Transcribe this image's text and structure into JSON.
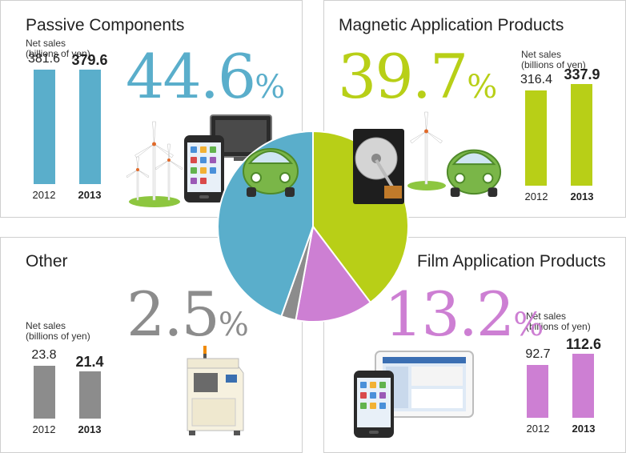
{
  "colors": {
    "passive": "#5aaecb",
    "magnetic": "#b8cf17",
    "film": "#cd7fd3",
    "other": "#8c8c8c"
  },
  "net_sales_label": [
    "Net sales",
    "(billions of yen)"
  ],
  "chart_data": [
    {
      "type": "pie",
      "title": "",
      "slices": [
        {
          "name": "Passive Components",
          "value": 44.6,
          "label": "44.6"
        },
        {
          "name": "Magnetic Application Products",
          "value": 39.7,
          "label": "39.7"
        },
        {
          "name": "Film Application Products",
          "value": 13.2,
          "label": "13.2"
        },
        {
          "name": "Other",
          "value": 2.5,
          "label": "2.5"
        }
      ],
      "unit": "%"
    },
    {
      "type": "bar",
      "title": "Passive Components",
      "ylabel": "Net sales (billions of yen)",
      "categories": [
        "2012",
        "2013"
      ],
      "values": [
        381.6,
        379.6
      ],
      "value_labels": [
        "381.6",
        "379.6"
      ]
    },
    {
      "type": "bar",
      "title": "Magnetic Application Products",
      "ylabel": "Net sales (billions of yen)",
      "categories": [
        "2012",
        "2013"
      ],
      "values": [
        316.4,
        337.9
      ],
      "value_labels": [
        "316.4",
        "337.9"
      ]
    },
    {
      "type": "bar",
      "title": "Other",
      "ylabel": "Net sales (billions of yen)",
      "categories": [
        "2012",
        "2013"
      ],
      "values": [
        23.8,
        21.4
      ],
      "value_labels": [
        "23.8",
        "21.4"
      ]
    },
    {
      "type": "bar",
      "title": "Film Application Products",
      "ylabel": "Net sales (billions of yen)",
      "categories": [
        "2012",
        "2013"
      ],
      "values": [
        92.7,
        112.6
      ],
      "value_labels": [
        "92.7",
        "112.6"
      ]
    }
  ]
}
